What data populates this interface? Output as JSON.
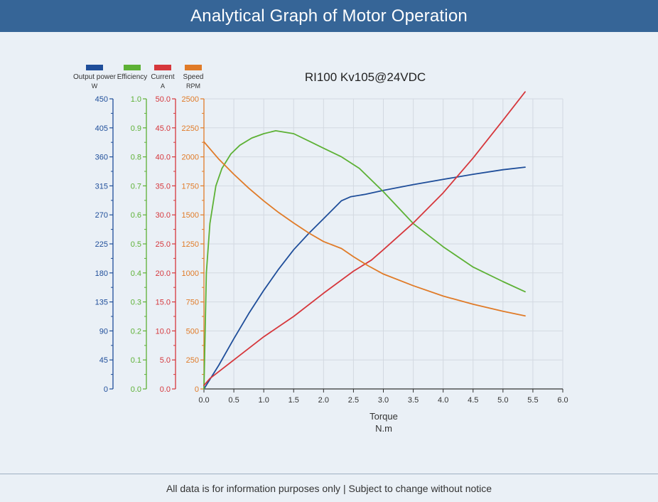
{
  "page": {
    "title": "Analytical Graph of Motor Operation",
    "footer": "All data is for information purposes only | Subject to change without notice"
  },
  "chart_data": {
    "type": "line",
    "title": "RI100 Kv105@24VDC",
    "xlabel": "Torque",
    "xunit": "N.m",
    "xlim": [
      0,
      6
    ],
    "xticks": [
      "0.0",
      "0.5",
      "1.0",
      "1.5",
      "2.0",
      "2.5",
      "3.0",
      "3.5",
      "4.0",
      "4.5",
      "5.0",
      "5.5",
      "6.0"
    ],
    "grid": true,
    "legend_position": "top-left",
    "y_axes": [
      {
        "id": "power",
        "name": "Output power",
        "unit": "W",
        "color": "#1f4e9a",
        "lim": [
          0,
          450
        ],
        "ticks": [
          "0",
          "45",
          "90",
          "135",
          "180",
          "225",
          "270",
          "315",
          "360",
          "405",
          "450"
        ]
      },
      {
        "id": "eff",
        "name": "Efficiency",
        "unit": "",
        "color": "#5db135",
        "lim": [
          0,
          1
        ],
        "ticks": [
          "0.0",
          "0.1",
          "0.2",
          "0.3",
          "0.4",
          "0.5",
          "0.6",
          "0.7",
          "0.8",
          "0.9",
          "1.0"
        ]
      },
      {
        "id": "current",
        "name": "Current",
        "unit": "A",
        "color": "#d6373c",
        "lim": [
          0,
          50
        ],
        "ticks": [
          "0.0",
          "5.0",
          "10.0",
          "15.0",
          "20.0",
          "25.0",
          "30.0",
          "35.0",
          "40.0",
          "45.0",
          "50.0"
        ]
      },
      {
        "id": "speed",
        "name": "Speed",
        "unit": "RPM",
        "color": "#e07b28",
        "lim": [
          0,
          2500
        ],
        "ticks": [
          "0",
          "250",
          "500",
          "750",
          "1000",
          "1250",
          "1500",
          "1750",
          "2000",
          "2250",
          "2500"
        ]
      }
    ],
    "series": [
      {
        "axis": "power",
        "color": "#1f4e9a",
        "x": [
          0.0,
          0.25,
          0.5,
          0.75,
          1.0,
          1.25,
          1.5,
          1.75,
          2.0,
          2.3,
          2.45,
          2.7,
          3.0,
          3.5,
          4.0,
          4.5,
          5.0,
          5.37
        ],
        "y": [
          0,
          37,
          78,
          117,
          153,
          186,
          216,
          241,
          264,
          292,
          298,
          302,
          308,
          317,
          325,
          333,
          340,
          344
        ]
      },
      {
        "axis": "eff",
        "color": "#5db135",
        "x": [
          0.0,
          0.04,
          0.1,
          0.2,
          0.3,
          0.45,
          0.6,
          0.8,
          1.0,
          1.2,
          1.5,
          1.8,
          2.0,
          2.3,
          2.6,
          3.0,
          3.5,
          4.0,
          4.5,
          5.0,
          5.37
        ],
        "y": [
          0.0,
          0.4,
          0.57,
          0.7,
          0.76,
          0.81,
          0.84,
          0.865,
          0.88,
          0.89,
          0.88,
          0.85,
          0.83,
          0.8,
          0.76,
          0.68,
          0.57,
          0.49,
          0.42,
          0.37,
          0.335
        ]
      },
      {
        "axis": "current",
        "color": "#d6373c",
        "x": [
          0.0,
          0.1,
          0.5,
          1.0,
          1.5,
          2.0,
          2.5,
          2.8,
          3.0,
          3.5,
          4.0,
          4.5,
          5.0,
          5.37
        ],
        "y": [
          0.6,
          1.8,
          5.0,
          9.0,
          12.5,
          16.5,
          20.3,
          22.2,
          24.0,
          28.6,
          33.8,
          39.8,
          46.3,
          51.2
        ]
      },
      {
        "axis": "speed",
        "color": "#e07b28",
        "x": [
          0.0,
          0.25,
          0.5,
          0.75,
          1.0,
          1.25,
          1.5,
          1.75,
          2.0,
          2.3,
          2.5,
          2.75,
          3.0,
          3.5,
          4.0,
          4.5,
          5.0,
          5.37
        ],
        "y": [
          2130,
          1980,
          1850,
          1730,
          1620,
          1520,
          1430,
          1345,
          1270,
          1210,
          1140,
          1060,
          990,
          890,
          800,
          730,
          670,
          630
        ]
      }
    ]
  }
}
